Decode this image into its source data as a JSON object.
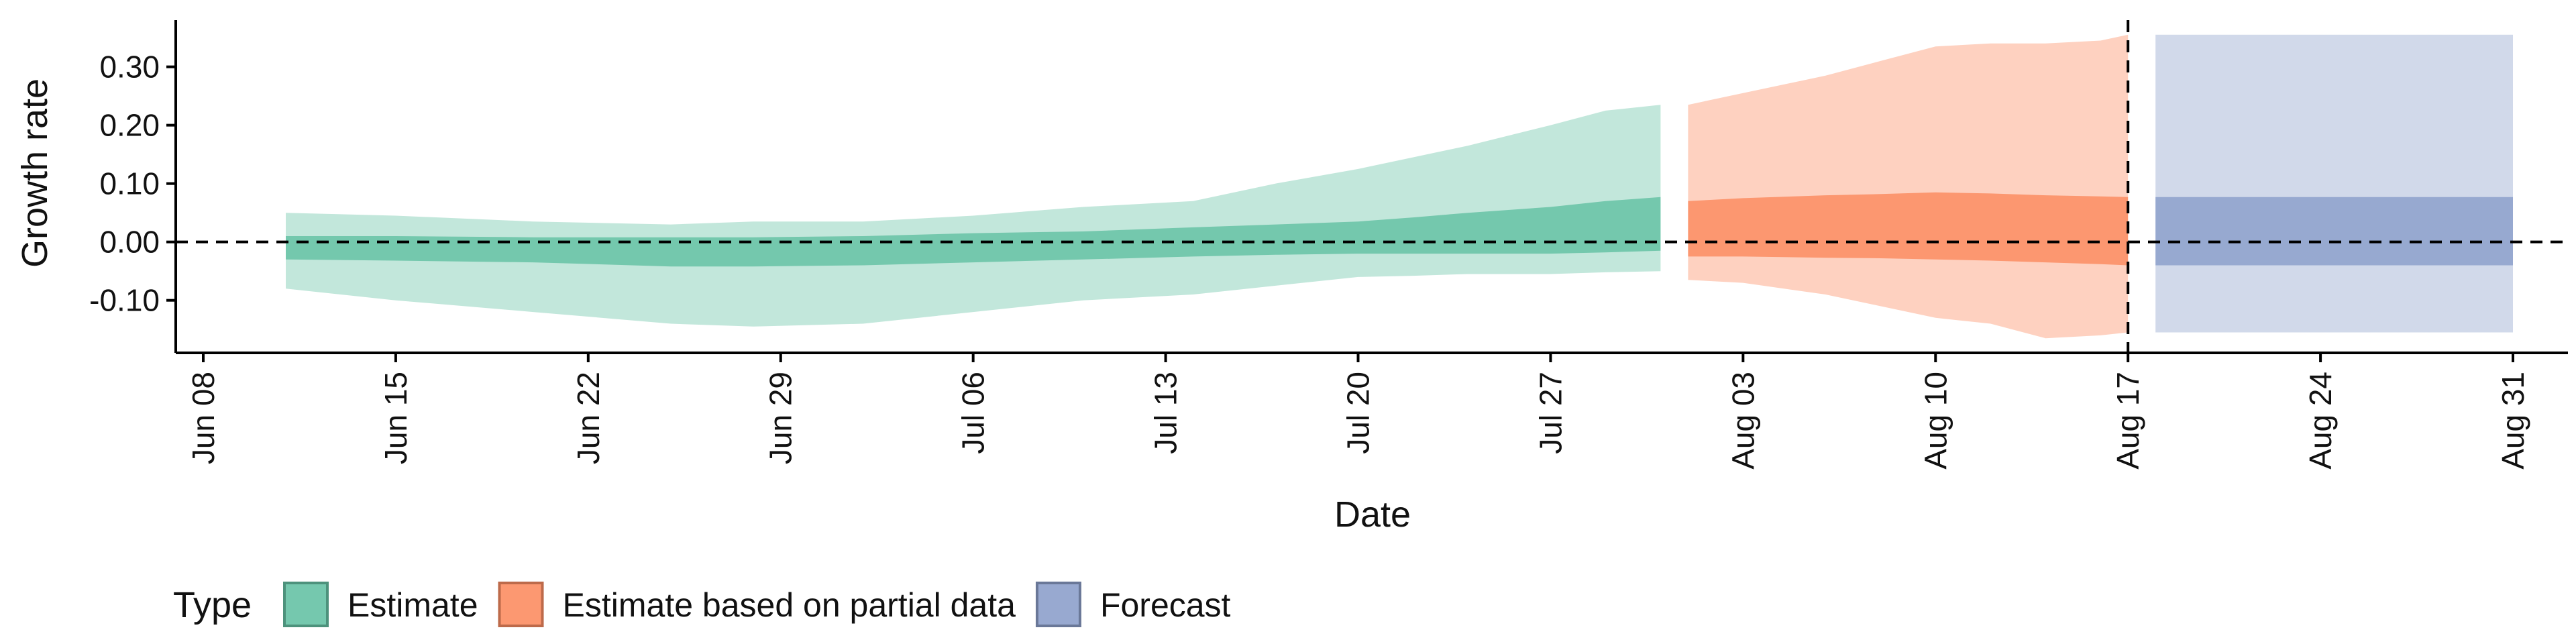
{
  "chart_data": {
    "type": "area",
    "xlabel": "Date",
    "ylabel": "Growth rate",
    "x_range": [
      "2020-06-07",
      "2020-09-02"
    ],
    "ylim": [
      -0.19,
      0.38
    ],
    "x_ticks": [
      "2020-06-08",
      "2020-06-15",
      "2020-06-22",
      "2020-06-29",
      "2020-07-06",
      "2020-07-13",
      "2020-07-20",
      "2020-07-27",
      "2020-08-03",
      "2020-08-10",
      "2020-08-17",
      "2020-08-24",
      "2020-08-31"
    ],
    "x_tick_labels": [
      "Jun 08",
      "Jun 15",
      "Jun 22",
      "Jun 29",
      "Jul 06",
      "Jul 13",
      "Jul 20",
      "Jul 27",
      "Aug 03",
      "Aug 10",
      "Aug 17",
      "Aug 24",
      "Aug 31"
    ],
    "y_ticks": [
      -0.1,
      0.0,
      0.1,
      0.2,
      0.3
    ],
    "y_tick_labels": [
      "-0.10",
      "0.00",
      "0.10",
      "0.20",
      "0.30"
    ],
    "reference_lines": {
      "y": 0.0,
      "x": "2020-08-17",
      "style": "dashed"
    },
    "legend": {
      "title": "Type",
      "position": "bottom-left"
    },
    "grid": false,
    "series": [
      {
        "name": "Estimate",
        "color": "#66c2a5",
        "x": [
          "2020-06-11",
          "2020-06-15",
          "2020-06-20",
          "2020-06-25",
          "2020-06-28",
          "2020-07-02",
          "2020-07-06",
          "2020-07-10",
          "2020-07-14",
          "2020-07-17",
          "2020-07-20",
          "2020-07-22",
          "2020-07-24",
          "2020-07-27",
          "2020-07-29",
          "2020-07-31"
        ],
        "outer_lower": [
          -0.08,
          -0.1,
          -0.12,
          -0.14,
          -0.145,
          -0.14,
          -0.12,
          -0.1,
          -0.09,
          -0.075,
          -0.06,
          -0.058,
          -0.055,
          -0.055,
          -0.052,
          -0.05
        ],
        "outer_upper": [
          0.05,
          0.045,
          0.035,
          0.03,
          0.035,
          0.035,
          0.045,
          0.06,
          0.07,
          0.1,
          0.125,
          0.145,
          0.165,
          0.2,
          0.225,
          0.235
        ],
        "inner_lower": [
          -0.03,
          -0.032,
          -0.035,
          -0.042,
          -0.042,
          -0.04,
          -0.035,
          -0.03,
          -0.025,
          -0.022,
          -0.02,
          -0.02,
          -0.02,
          -0.02,
          -0.018,
          -0.015
        ],
        "inner_upper": [
          0.01,
          0.01,
          0.008,
          0.008,
          0.008,
          0.01,
          0.015,
          0.018,
          0.025,
          0.03,
          0.035,
          0.042,
          0.05,
          0.06,
          0.07,
          0.077
        ]
      },
      {
        "name": "Estimate based on partial data",
        "color": "#fc8d62",
        "x": [
          "2020-08-01",
          "2020-08-03",
          "2020-08-06",
          "2020-08-08",
          "2020-08-10",
          "2020-08-12",
          "2020-08-14",
          "2020-08-16",
          "2020-08-17"
        ],
        "outer_lower": [
          -0.065,
          -0.07,
          -0.09,
          -0.11,
          -0.13,
          -0.14,
          -0.165,
          -0.16,
          -0.155
        ],
        "outer_upper": [
          0.235,
          0.255,
          0.285,
          0.31,
          0.335,
          0.34,
          0.34,
          0.345,
          0.355
        ],
        "inner_lower": [
          -0.025,
          -0.025,
          -0.027,
          -0.028,
          -0.03,
          -0.032,
          -0.035,
          -0.038,
          -0.04
        ],
        "inner_upper": [
          0.07,
          0.075,
          0.08,
          0.082,
          0.085,
          0.083,
          0.08,
          0.078,
          0.077
        ]
      },
      {
        "name": "Forecast",
        "color": "#8da0cb",
        "x": [
          "2020-08-18",
          "2020-08-31"
        ],
        "outer_lower": [
          -0.155,
          -0.155
        ],
        "outer_upper": [
          0.355,
          0.355
        ],
        "inner_lower": [
          -0.04,
          -0.04
        ],
        "inner_upper": [
          0.077,
          0.077
        ]
      }
    ]
  }
}
